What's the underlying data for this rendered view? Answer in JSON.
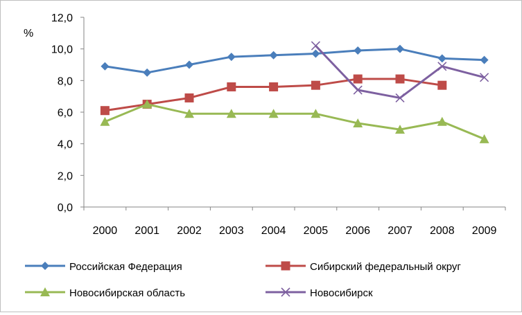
{
  "chart_data": {
    "type": "line",
    "title": "",
    "xlabel": "",
    "ylabel": "%",
    "ylim": [
      0,
      12
    ],
    "yticks": [
      "0,0",
      "2,0",
      "4,0",
      "6,0",
      "8,0",
      "10,0",
      "12,0"
    ],
    "ytick_values": [
      0,
      2,
      4,
      6,
      8,
      10,
      12
    ],
    "categories": [
      "2000",
      "2001",
      "2002",
      "2003",
      "2004",
      "2005",
      "2006",
      "2007",
      "2008",
      "2009"
    ],
    "grid": false,
    "legend_position": "bottom",
    "series": [
      {
        "name": "Российская Федерация",
        "color": "#4a7ebb",
        "marker": "diamond",
        "values": [
          8.9,
          8.5,
          9.0,
          9.5,
          9.6,
          9.7,
          9.9,
          10.0,
          9.4,
          9.3
        ]
      },
      {
        "name": "Сибирский федеральный округ",
        "color": "#be4b48",
        "marker": "square",
        "values": [
          6.1,
          6.5,
          6.9,
          7.6,
          7.6,
          7.7,
          8.1,
          8.1,
          7.7,
          null
        ]
      },
      {
        "name": "Новосибирская область",
        "color": "#98b954",
        "marker": "triangle",
        "values": [
          5.4,
          6.5,
          5.9,
          5.9,
          5.9,
          5.9,
          5.3,
          4.9,
          5.4,
          4.3
        ]
      },
      {
        "name": "Новосибирск",
        "color": "#7d60a0",
        "marker": "x",
        "values": [
          null,
          null,
          null,
          null,
          null,
          10.2,
          7.4,
          6.9,
          8.9,
          8.2
        ]
      }
    ]
  }
}
